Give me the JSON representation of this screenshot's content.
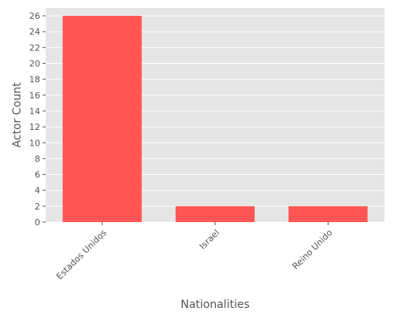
{
  "chart_data": {
    "type": "bar",
    "categories": [
      "Estados Unidos",
      "Israel",
      "Reino Unido"
    ],
    "values": [
      26,
      2,
      2
    ],
    "title": "",
    "xlabel": "Nationalities",
    "ylabel": "Actor Count",
    "ylim": [
      0,
      27
    ],
    "yticks": [
      0,
      2,
      4,
      6,
      8,
      10,
      12,
      14,
      16,
      18,
      20,
      22,
      24,
      26
    ],
    "grid": true,
    "bar_color": "#ff5555",
    "background_color": "#e5e5e5",
    "grid_color": "#ffffff"
  }
}
